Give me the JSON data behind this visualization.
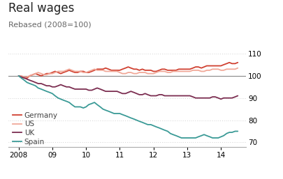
{
  "title": "Real wages",
  "subtitle": "Rebased (2008=100)",
  "background_color": "#ffffff",
  "ylim": [
    68,
    114
  ],
  "yticks": [
    70,
    80,
    90,
    100,
    110
  ],
  "xlabel_years": [
    "2008",
    "09",
    "10",
    "11",
    "12",
    "13",
    "14"
  ],
  "series": {
    "Germany": {
      "color": "#d04030",
      "linewidth": 1.3,
      "data_x": [
        2008.0,
        2008.08,
        2008.17,
        2008.25,
        2008.33,
        2008.42,
        2008.5,
        2008.58,
        2008.67,
        2008.75,
        2008.83,
        2008.92,
        2009.0,
        2009.08,
        2009.17,
        2009.25,
        2009.33,
        2009.42,
        2009.5,
        2009.58,
        2009.67,
        2009.75,
        2009.83,
        2009.92,
        2010.0,
        2010.08,
        2010.17,
        2010.25,
        2010.33,
        2010.42,
        2010.5,
        2010.58,
        2010.67,
        2010.75,
        2010.83,
        2010.92,
        2011.0,
        2011.08,
        2011.17,
        2011.25,
        2011.33,
        2011.42,
        2011.5,
        2011.58,
        2011.67,
        2011.75,
        2011.83,
        2011.92,
        2012.0,
        2012.08,
        2012.17,
        2012.25,
        2012.33,
        2012.42,
        2012.5,
        2012.58,
        2012.67,
        2012.75,
        2012.83,
        2012.92,
        2013.0,
        2013.08,
        2013.17,
        2013.25,
        2013.33,
        2013.42,
        2013.5,
        2013.58,
        2013.67,
        2013.75,
        2013.83,
        2013.92,
        2014.0,
        2014.08,
        2014.17,
        2014.25,
        2014.33,
        2014.42,
        2014.5
      ],
      "data_y": [
        100,
        99.5,
        99,
        99,
        100,
        100.5,
        101,
        100.5,
        100,
        100.5,
        101,
        101,
        101.5,
        102,
        101.5,
        101,
        101.5,
        102,
        102.5,
        102,
        101.5,
        101.5,
        102,
        102,
        101.5,
        101.5,
        102,
        102.5,
        103,
        103,
        103,
        103.5,
        103,
        102.5,
        102.5,
        102.5,
        102.5,
        103,
        103.5,
        104,
        103.5,
        103,
        103,
        102.5,
        103,
        102.5,
        102.5,
        102.5,
        102,
        102,
        102.5,
        103,
        103,
        102.5,
        102.5,
        102.5,
        102.5,
        103,
        103,
        103,
        103,
        103,
        103.5,
        104,
        104,
        103.5,
        104,
        104.5,
        104.5,
        104.5,
        104.5,
        104.5,
        104.5,
        105,
        105.5,
        106,
        105.5,
        105.5,
        106
      ]
    },
    "US": {
      "color": "#f0a898",
      "linewidth": 1.3,
      "data_x": [
        2008.0,
        2008.08,
        2008.17,
        2008.25,
        2008.33,
        2008.42,
        2008.5,
        2008.58,
        2008.67,
        2008.75,
        2008.83,
        2008.92,
        2009.0,
        2009.08,
        2009.17,
        2009.25,
        2009.33,
        2009.42,
        2009.5,
        2009.58,
        2009.67,
        2009.75,
        2009.83,
        2009.92,
        2010.0,
        2010.08,
        2010.17,
        2010.25,
        2010.33,
        2010.42,
        2010.5,
        2010.58,
        2010.67,
        2010.75,
        2010.83,
        2010.92,
        2011.0,
        2011.08,
        2011.17,
        2011.25,
        2011.33,
        2011.42,
        2011.5,
        2011.58,
        2011.67,
        2011.75,
        2011.83,
        2011.92,
        2012.0,
        2012.08,
        2012.17,
        2012.25,
        2012.33,
        2012.42,
        2012.5,
        2012.58,
        2012.67,
        2012.75,
        2012.83,
        2012.92,
        2013.0,
        2013.08,
        2013.17,
        2013.25,
        2013.33,
        2013.42,
        2013.5,
        2013.58,
        2013.67,
        2013.75,
        2013.83,
        2013.92,
        2014.0,
        2014.08,
        2014.17,
        2014.25,
        2014.33,
        2014.42,
        2014.5
      ],
      "data_y": [
        100,
        100,
        99.5,
        99.5,
        100,
        100.5,
        101,
        101.5,
        101,
        100.5,
        100.5,
        101,
        101,
        101.5,
        102,
        102,
        102,
        102.5,
        103,
        102.5,
        102,
        102,
        102,
        101.5,
        101.5,
        102,
        102.5,
        103,
        102.5,
        102.5,
        102.5,
        102,
        102,
        102,
        102,
        102,
        101.5,
        101,
        101,
        101.5,
        101.5,
        101,
        101,
        101.5,
        101.5,
        101.5,
        101,
        101,
        101,
        101.5,
        102,
        102,
        102,
        101.5,
        101.5,
        102,
        102,
        102,
        102,
        102,
        102,
        102,
        102.5,
        102.5,
        102.5,
        102,
        102,
        102.5,
        102.5,
        103,
        103,
        103,
        102.5,
        102.5,
        103,
        103,
        103,
        103,
        103.5
      ]
    },
    "UK": {
      "color": "#7b2d50",
      "linewidth": 1.3,
      "data_x": [
        2008.0,
        2008.08,
        2008.17,
        2008.25,
        2008.33,
        2008.42,
        2008.5,
        2008.58,
        2008.67,
        2008.75,
        2008.83,
        2008.92,
        2009.0,
        2009.08,
        2009.17,
        2009.25,
        2009.33,
        2009.42,
        2009.5,
        2009.58,
        2009.67,
        2009.75,
        2009.83,
        2009.92,
        2010.0,
        2010.08,
        2010.17,
        2010.25,
        2010.33,
        2010.42,
        2010.5,
        2010.58,
        2010.67,
        2010.75,
        2010.83,
        2010.92,
        2011.0,
        2011.08,
        2011.17,
        2011.25,
        2011.33,
        2011.42,
        2011.5,
        2011.58,
        2011.67,
        2011.75,
        2011.83,
        2011.92,
        2012.0,
        2012.08,
        2012.17,
        2012.25,
        2012.33,
        2012.42,
        2012.5,
        2012.58,
        2012.67,
        2012.75,
        2012.83,
        2012.92,
        2013.0,
        2013.08,
        2013.17,
        2013.25,
        2013.33,
        2013.42,
        2013.5,
        2013.58,
        2013.67,
        2013.75,
        2013.83,
        2013.92,
        2014.0,
        2014.08,
        2014.17,
        2014.25,
        2014.33,
        2014.42,
        2014.5
      ],
      "data_y": [
        100,
        99.5,
        99,
        98.5,
        98,
        97.5,
        97,
        96.5,
        96.5,
        96,
        95.5,
        95.5,
        95,
        95,
        95.5,
        96,
        95.5,
        95,
        95,
        94.5,
        94,
        94,
        94,
        94,
        94,
        93.5,
        93.5,
        94,
        94.5,
        94,
        93.5,
        93,
        93,
        93,
        93,
        93,
        92.5,
        92,
        92,
        92.5,
        93,
        92.5,
        92,
        91.5,
        91.5,
        92,
        91.5,
        91,
        91,
        91,
        91.5,
        91.5,
        91,
        91,
        91,
        91,
        91,
        91,
        91,
        91,
        91,
        91,
        90.5,
        90,
        90,
        90,
        90,
        90,
        90,
        90.5,
        90.5,
        90,
        89.5,
        90,
        90,
        90,
        90,
        90.5,
        91
      ]
    },
    "Spain": {
      "color": "#3a9a96",
      "linewidth": 1.3,
      "data_x": [
        2008.0,
        2008.08,
        2008.17,
        2008.25,
        2008.33,
        2008.42,
        2008.5,
        2008.58,
        2008.67,
        2008.75,
        2008.83,
        2008.92,
        2009.0,
        2009.08,
        2009.17,
        2009.25,
        2009.33,
        2009.42,
        2009.5,
        2009.58,
        2009.67,
        2009.75,
        2009.83,
        2009.92,
        2010.0,
        2010.08,
        2010.17,
        2010.25,
        2010.33,
        2010.42,
        2010.5,
        2010.58,
        2010.67,
        2010.75,
        2010.83,
        2010.92,
        2011.0,
        2011.08,
        2011.17,
        2011.25,
        2011.33,
        2011.42,
        2011.5,
        2011.58,
        2011.67,
        2011.75,
        2011.83,
        2011.92,
        2012.0,
        2012.08,
        2012.17,
        2012.25,
        2012.33,
        2012.42,
        2012.5,
        2012.58,
        2012.67,
        2012.75,
        2012.83,
        2012.92,
        2013.0,
        2013.08,
        2013.17,
        2013.25,
        2013.33,
        2013.42,
        2013.5,
        2013.58,
        2013.67,
        2013.75,
        2013.83,
        2013.92,
        2014.0,
        2014.08,
        2014.17,
        2014.25,
        2014.33,
        2014.42,
        2014.5
      ],
      "data_y": [
        100,
        99,
        98,
        97,
        96.5,
        96,
        95.5,
        94.5,
        94,
        93.5,
        93,
        92.5,
        92,
        91,
        90,
        89.5,
        89,
        88.5,
        88,
        87,
        86,
        86,
        86,
        85.5,
        86,
        87,
        87.5,
        88,
        87,
        86,
        85,
        84.5,
        84,
        83.5,
        83,
        83,
        83,
        82.5,
        82,
        81.5,
        81,
        80.5,
        80,
        79.5,
        79,
        78.5,
        78,
        78,
        77.5,
        77,
        76.5,
        76,
        75.5,
        75,
        74,
        73.5,
        73,
        72.5,
        72,
        72,
        72,
        72,
        72,
        72,
        72.5,
        73,
        73.5,
        73,
        72.5,
        72,
        72,
        72,
        72.5,
        73,
        74,
        74.5,
        74.5,
        75,
        75
      ]
    }
  },
  "legend_order": [
    "Germany",
    "US",
    "UK",
    "Spain"
  ]
}
